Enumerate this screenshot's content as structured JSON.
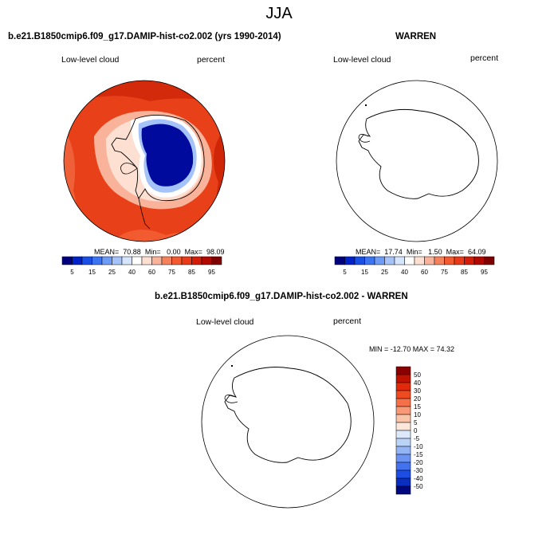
{
  "season": "JJA",
  "panel_top_left": {
    "title": "b.e21.B1850cmip6.f09_g17.DAMIP-hist-co2.002 (yrs 1990-2014)",
    "variable": "Low-level cloud",
    "units": "percent",
    "stats": {
      "mean_label": "MEAN=",
      "mean": "70.88",
      "min_label": "Min=",
      "min": "0.00",
      "max_label": "Max=",
      "max": "98.09"
    }
  },
  "panel_top_right": {
    "title": "WARREN",
    "variable": "Low-level cloud",
    "units": "percent",
    "stats": {
      "mean_label": "MEAN=",
      "mean": "17.74",
      "min_label": "Min=",
      "min": "1.50",
      "max_label": "Max=",
      "max": "64.09"
    }
  },
  "panel_bottom": {
    "title": "b.e21.B1850cmip6.f09_g17.DAMIP-hist-co2.002 - WARREN",
    "variable": "Low-level cloud",
    "units": "percent",
    "range_text": "MIN = -12.70 MAX = 74.32"
  },
  "colorbar_horizontal": {
    "labels": [
      "5",
      "15",
      "25",
      "40",
      "60",
      "75",
      "85",
      "95"
    ],
    "colors": [
      "#00007f",
      "#0022c8",
      "#1a4fe6",
      "#3d74f2",
      "#6d9bf6",
      "#a5c3f9",
      "#d6e4fc",
      "#ffffff",
      "#fde0d2",
      "#f9b39a",
      "#f6825d",
      "#f25a30",
      "#e83a18",
      "#d41d08",
      "#b10800",
      "#7f0000"
    ]
  },
  "colorbar_vertical": {
    "labels": [
      "50",
      "40",
      "30",
      "20",
      "15",
      "10",
      "5",
      "0",
      "-5",
      "-10",
      "-15",
      "-20",
      "-30",
      "-40",
      "-50"
    ],
    "colors": [
      "#8b0000",
      "#c01200",
      "#e02a0a",
      "#f04a20",
      "#f57048",
      "#f89876",
      "#fbc3a8",
      "#fde6da",
      "#dde9fb",
      "#bcd3f8",
      "#94b5f5",
      "#6b94f2",
      "#4472ee",
      "#1c4ee6",
      "#0a2ec0",
      "#00087f"
    ]
  },
  "colors": {
    "ocean_high": "#e84018",
    "ice_interior": "#000a9c"
  }
}
